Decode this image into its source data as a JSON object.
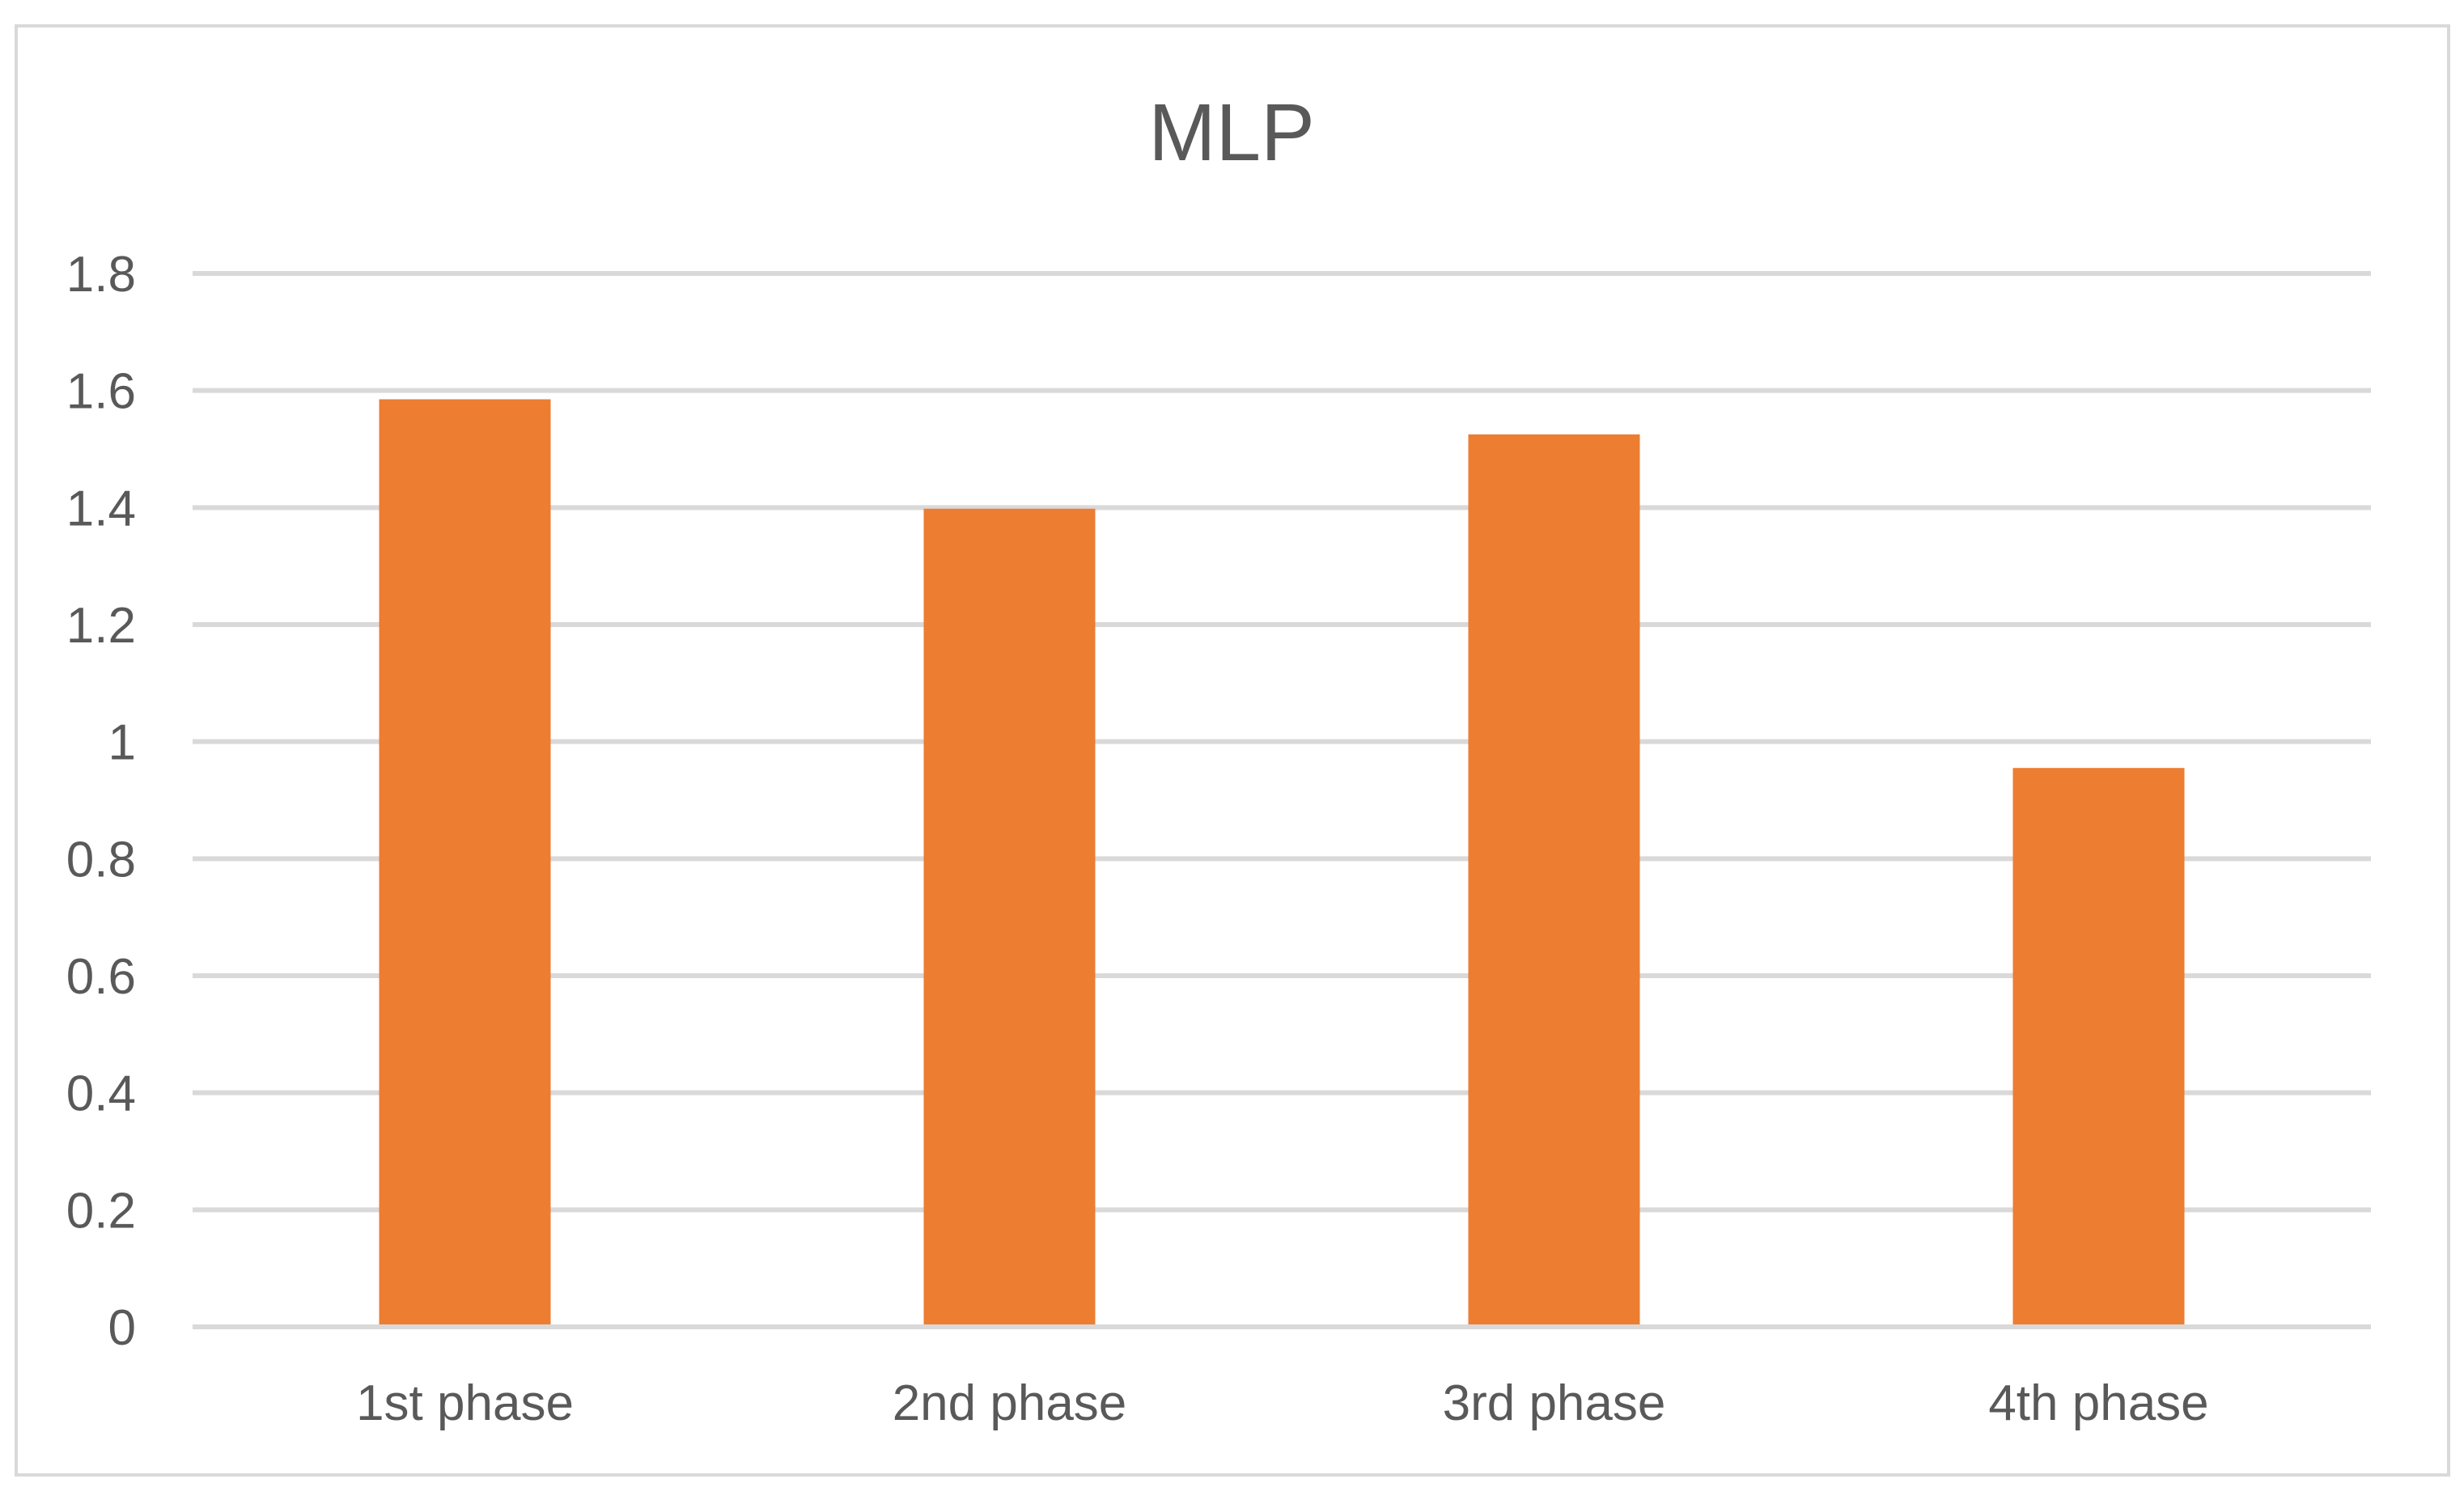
{
  "chart_data": {
    "type": "bar",
    "title": "MLP",
    "xlabel": "",
    "ylabel": "",
    "categories": [
      "1st phase",
      "2nd phase",
      "3rd phase",
      "4th phase"
    ],
    "series": [
      {
        "values": [
          1.585,
          1.398,
          1.525,
          0.955
        ]
      }
    ],
    "ylim": [
      0,
      1.8
    ],
    "yticks": [
      "0",
      "0.2",
      "0.4",
      "0.6",
      "0.8",
      "1",
      "1.2",
      "1.4",
      "1.6",
      "1.8"
    ],
    "grid": true,
    "legend": "none",
    "bar_color": "#ED7D31"
  }
}
